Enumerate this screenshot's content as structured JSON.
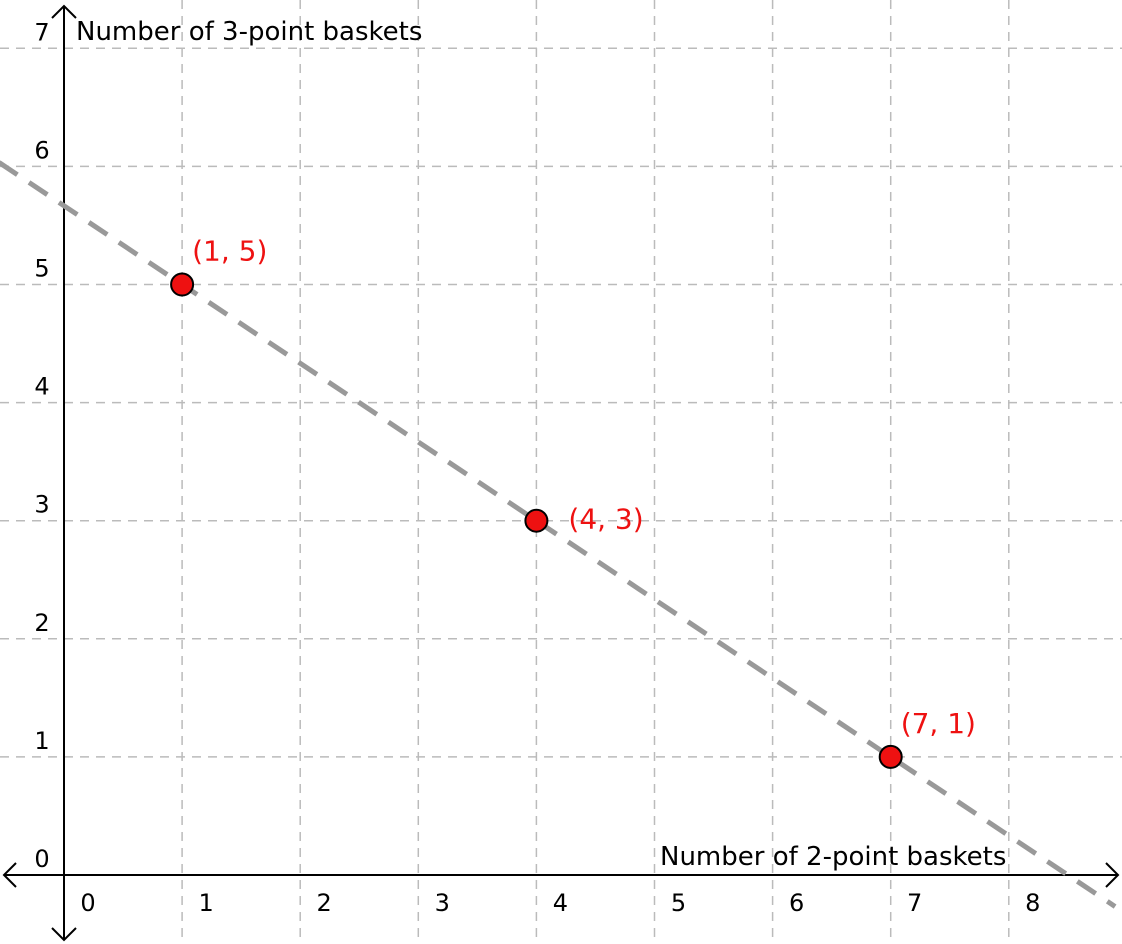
{
  "chart_data": {
    "type": "scatter",
    "xlabel": "Number of 2-point baskets",
    "ylabel": "Number of 3-point baskets",
    "xlim": [
      -0.5,
      8.95
    ],
    "ylim": [
      -0.55,
      7.4
    ],
    "x_ticks": [
      "0",
      "1",
      "2",
      "3",
      "4",
      "5",
      "6",
      "7",
      "8"
    ],
    "y_ticks": [
      "0",
      "1",
      "2",
      "3",
      "4",
      "5",
      "6",
      "7"
    ],
    "grid": true,
    "points": [
      {
        "x": 1,
        "y": 5,
        "label": "(1, 5)"
      },
      {
        "x": 4,
        "y": 3,
        "label": "(4, 3)"
      },
      {
        "x": 7,
        "y": 1,
        "label": "(7, 1)"
      }
    ],
    "line": {
      "style": "dashed",
      "slope": -0.6667,
      "intercept": 5.6667
    },
    "colors": {
      "points": "#ee1111",
      "labels": "#ee1111",
      "line": "#999999",
      "grid": "#bbbbbb"
    }
  }
}
